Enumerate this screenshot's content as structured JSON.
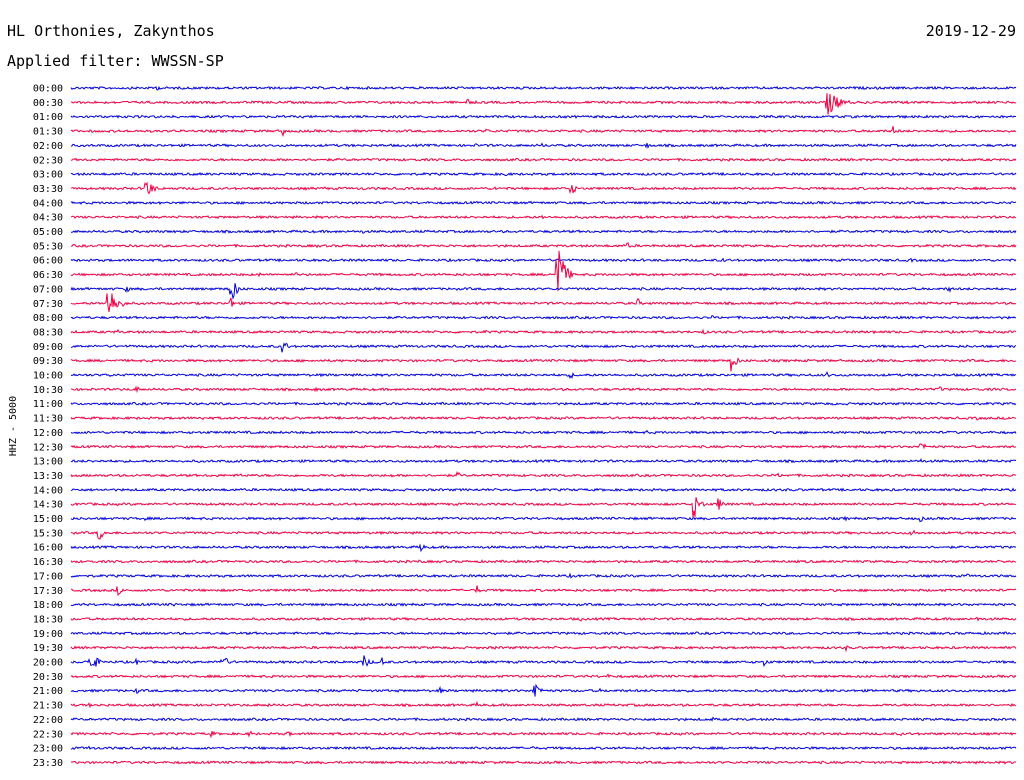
{
  "chart_data": {
    "type": "line",
    "title": "HL Orthonies, Zakynthos",
    "date": "2019-12-29",
    "subtitle": "Applied filter: WWSSN-SP",
    "ylabel": "HHZ - 5000",
    "xlabel": "",
    "grid": false,
    "colors": [
      "#0000dd",
      "#ee0044"
    ],
    "rows": [
      {
        "label": "00:00",
        "events": [
          {
            "x": 0.09,
            "a": 3,
            "d": 0.015
          },
          {
            "x": 0.4,
            "a": 1.5,
            "d": 0.008
          },
          {
            "x": 0.53,
            "a": 1.5,
            "d": 0.008
          }
        ]
      },
      {
        "label": "00:30",
        "events": [
          {
            "x": 0.34,
            "a": 2,
            "d": 0.006
          },
          {
            "x": 0.42,
            "a": 4,
            "d": 0.012
          },
          {
            "x": 0.8,
            "a": 14,
            "d": 0.035
          },
          {
            "x": 0.88,
            "a": 2,
            "d": 0.005
          }
        ]
      },
      {
        "label": "01:00",
        "events": []
      },
      {
        "label": "01:30",
        "events": [
          {
            "x": 0.225,
            "a": 6,
            "d": 0.004
          },
          {
            "x": 0.44,
            "a": 3,
            "d": 0.006
          },
          {
            "x": 0.87,
            "a": 5,
            "d": 0.015
          }
        ]
      },
      {
        "label": "02:00",
        "events": [
          {
            "x": 0.43,
            "a": 2,
            "d": 0.006
          },
          {
            "x": 0.5,
            "a": 2,
            "d": 0.012
          },
          {
            "x": 0.61,
            "a": 3,
            "d": 0.008
          }
        ]
      },
      {
        "label": "02:30",
        "events": []
      },
      {
        "label": "03:00",
        "events": [
          {
            "x": 0.46,
            "a": 3,
            "d": 0.005
          }
        ]
      },
      {
        "label": "03:30",
        "events": [
          {
            "x": 0.08,
            "a": 10,
            "d": 0.02
          },
          {
            "x": 0.27,
            "a": 2,
            "d": 0.008
          },
          {
            "x": 0.31,
            "a": 2,
            "d": 0.006
          },
          {
            "x": 0.45,
            "a": 2,
            "d": 0.006
          },
          {
            "x": 0.53,
            "a": 6,
            "d": 0.015
          },
          {
            "x": 0.87,
            "a": 1.5,
            "d": 0.005
          }
        ]
      },
      {
        "label": "04:00",
        "events": []
      },
      {
        "label": "04:30",
        "events": [
          {
            "x": 0.5,
            "a": 2,
            "d": 0.004
          }
        ]
      },
      {
        "label": "05:00",
        "events": [
          {
            "x": 0.19,
            "a": 2,
            "d": 0.004
          },
          {
            "x": 0.31,
            "a": 2,
            "d": 0.004
          }
        ]
      },
      {
        "label": "05:30",
        "events": [
          {
            "x": 0.26,
            "a": 2,
            "d": 0.004
          },
          {
            "x": 0.59,
            "a": 3,
            "d": 0.01
          }
        ]
      },
      {
        "label": "06:00",
        "events": [
          {
            "x": 0.69,
            "a": 3,
            "d": 0.008
          },
          {
            "x": 0.89,
            "a": 2,
            "d": 0.004
          }
        ]
      },
      {
        "label": "06:30",
        "events": [
          {
            "x": 0.2,
            "a": 2,
            "d": 0.006
          },
          {
            "x": 0.24,
            "a": 2,
            "d": 0.005
          },
          {
            "x": 0.515,
            "a": 40,
            "d": 0.018
          }
        ]
      },
      {
        "label": "07:00",
        "events": [
          {
            "x": 0.06,
            "a": 3,
            "d": 0.01
          },
          {
            "x": 0.17,
            "a": 16,
            "d": 0.014
          },
          {
            "x": 0.93,
            "a": 3,
            "d": 0.005
          }
        ]
      },
      {
        "label": "07:30",
        "events": [
          {
            "x": 0.04,
            "a": 18,
            "d": 0.025
          },
          {
            "x": 0.17,
            "a": 6,
            "d": 0.01
          },
          {
            "x": 0.6,
            "a": 5,
            "d": 0.008
          }
        ]
      },
      {
        "label": "08:00",
        "events": [
          {
            "x": 0.68,
            "a": 2,
            "d": 0.006
          }
        ]
      },
      {
        "label": "08:30",
        "events": [
          {
            "x": 0.05,
            "a": 2,
            "d": 0.004
          },
          {
            "x": 0.44,
            "a": 2,
            "d": 0.004
          },
          {
            "x": 0.67,
            "a": 3,
            "d": 0.006
          },
          {
            "x": 0.85,
            "a": 2,
            "d": 0.004
          }
        ]
      },
      {
        "label": "09:00",
        "events": [
          {
            "x": 0.225,
            "a": 7,
            "d": 0.012
          }
        ]
      },
      {
        "label": "09:30",
        "events": [
          {
            "x": 0.7,
            "a": 12,
            "d": 0.012
          }
        ]
      },
      {
        "label": "10:00",
        "events": [
          {
            "x": 0.04,
            "a": 3,
            "d": 0.008
          },
          {
            "x": 0.27,
            "a": 2,
            "d": 0.004
          },
          {
            "x": 0.53,
            "a": 3,
            "d": 0.008
          },
          {
            "x": 0.8,
            "a": 3,
            "d": 0.01
          }
        ]
      },
      {
        "label": "10:30",
        "events": [
          {
            "x": 0.07,
            "a": 3,
            "d": 0.01
          },
          {
            "x": 0.26,
            "a": 2,
            "d": 0.006
          },
          {
            "x": 0.92,
            "a": 3,
            "d": 0.01
          }
        ]
      },
      {
        "label": "11:00",
        "events": [
          {
            "x": 0.84,
            "a": 2,
            "d": 0.004
          }
        ]
      },
      {
        "label": "11:30",
        "events": [
          {
            "x": 0.14,
            "a": 2,
            "d": 0.004
          },
          {
            "x": 0.21,
            "a": 2,
            "d": 0.006
          },
          {
            "x": 0.96,
            "a": 2,
            "d": 0.006
          }
        ]
      },
      {
        "label": "12:00",
        "events": [
          {
            "x": 0.23,
            "a": 1.5,
            "d": 0.004
          },
          {
            "x": 0.61,
            "a": 2,
            "d": 0.006
          }
        ]
      },
      {
        "label": "12:30",
        "events": [
          {
            "x": 0.9,
            "a": 5,
            "d": 0.015
          }
        ]
      },
      {
        "label": "13:00",
        "events": [
          {
            "x": 0.23,
            "a": 1.5,
            "d": 0.004
          },
          {
            "x": 0.9,
            "a": 3,
            "d": 0.006
          }
        ]
      },
      {
        "label": "13:30",
        "events": [
          {
            "x": 0.18,
            "a": 2,
            "d": 0.006
          },
          {
            "x": 0.34,
            "a": 2,
            "d": 0.006
          },
          {
            "x": 0.41,
            "a": 3,
            "d": 0.015
          },
          {
            "x": 0.75,
            "a": 2,
            "d": 0.006
          }
        ]
      },
      {
        "label": "14:00",
        "events": []
      },
      {
        "label": "14:30",
        "events": [
          {
            "x": 0.34,
            "a": 2,
            "d": 0.004
          },
          {
            "x": 0.66,
            "a": 14,
            "d": 0.015
          },
          {
            "x": 0.685,
            "a": 7,
            "d": 0.015
          },
          {
            "x": 0.82,
            "a": 2,
            "d": 0.004
          },
          {
            "x": 0.87,
            "a": 2,
            "d": 0.004
          }
        ]
      },
      {
        "label": "15:00",
        "events": [
          {
            "x": 0.08,
            "a": 2,
            "d": 0.01
          },
          {
            "x": 0.61,
            "a": 2,
            "d": 0.006
          },
          {
            "x": 0.82,
            "a": 2,
            "d": 0.006
          },
          {
            "x": 0.9,
            "a": 3,
            "d": 0.008
          }
        ]
      },
      {
        "label": "15:30",
        "events": [
          {
            "x": 0.03,
            "a": 8,
            "d": 0.014
          },
          {
            "x": 0.25,
            "a": 2,
            "d": 0.006
          },
          {
            "x": 0.89,
            "a": 5,
            "d": 0.01
          }
        ]
      },
      {
        "label": "16:00",
        "events": [
          {
            "x": 0.31,
            "a": 2,
            "d": 0.004
          },
          {
            "x": 0.37,
            "a": 5,
            "d": 0.012
          }
        ]
      },
      {
        "label": "16:30",
        "events": [
          {
            "x": 0.37,
            "a": 2,
            "d": 0.004
          },
          {
            "x": 0.78,
            "a": 2,
            "d": 0.004
          }
        ]
      },
      {
        "label": "17:00",
        "events": [
          {
            "x": 0.53,
            "a": 2,
            "d": 0.004
          },
          {
            "x": 0.95,
            "a": 2,
            "d": 0.004
          }
        ]
      },
      {
        "label": "17:30",
        "events": [
          {
            "x": 0.05,
            "a": 5,
            "d": 0.012
          },
          {
            "x": 0.43,
            "a": 5,
            "d": 0.008
          }
        ]
      },
      {
        "label": "18:00",
        "events": [
          {
            "x": 0.11,
            "a": 3,
            "d": 0.004
          }
        ]
      },
      {
        "label": "18:30",
        "events": [
          {
            "x": 0.09,
            "a": 2,
            "d": 0.008
          },
          {
            "x": 0.54,
            "a": 2,
            "d": 0.004
          },
          {
            "x": 0.96,
            "a": 3,
            "d": 0.012
          }
        ]
      },
      {
        "label": "19:00",
        "events": [
          {
            "x": 0.45,
            "a": 2,
            "d": 0.004
          }
        ]
      },
      {
        "label": "19:30",
        "events": [
          {
            "x": 0.45,
            "a": 2,
            "d": 0.004
          },
          {
            "x": 0.82,
            "a": 3,
            "d": 0.01
          }
        ]
      },
      {
        "label": "20:00",
        "events": [
          {
            "x": 0.02,
            "a": 12,
            "d": 0.02
          },
          {
            "x": 0.07,
            "a": 3,
            "d": 0.012
          },
          {
            "x": 0.16,
            "a": 9,
            "d": 0.015
          },
          {
            "x": 0.31,
            "a": 7,
            "d": 0.018
          },
          {
            "x": 0.33,
            "a": 5,
            "d": 0.012
          },
          {
            "x": 0.735,
            "a": 4,
            "d": 0.012
          }
        ]
      },
      {
        "label": "20:30",
        "events": [
          {
            "x": 0.57,
            "a": 2,
            "d": 0.004
          }
        ]
      },
      {
        "label": "21:00",
        "events": [
          {
            "x": 0.07,
            "a": 3,
            "d": 0.01
          },
          {
            "x": 0.39,
            "a": 4,
            "d": 0.01
          },
          {
            "x": 0.49,
            "a": 14,
            "d": 0.012
          },
          {
            "x": 0.56,
            "a": 2,
            "d": 0.004
          }
        ]
      },
      {
        "label": "21:30",
        "events": [
          {
            "x": 0.02,
            "a": 2,
            "d": 0.006
          },
          {
            "x": 0.21,
            "a": 2,
            "d": 0.004
          },
          {
            "x": 0.43,
            "a": 3,
            "d": 0.006
          },
          {
            "x": 0.6,
            "a": 2,
            "d": 0.004
          }
        ]
      },
      {
        "label": "22:00",
        "events": [
          {
            "x": 0.68,
            "a": 2,
            "d": 0.006
          }
        ]
      },
      {
        "label": "22:30",
        "events": [
          {
            "x": 0.15,
            "a": 3,
            "d": 0.008
          },
          {
            "x": 0.19,
            "a": 3,
            "d": 0.01
          },
          {
            "x": 0.23,
            "a": 3,
            "d": 0.01
          },
          {
            "x": 0.88,
            "a": 2,
            "d": 0.004
          }
        ]
      },
      {
        "label": "23:00",
        "events": [
          {
            "x": 0.02,
            "a": 2,
            "d": 0.01
          },
          {
            "x": 0.49,
            "a": 2,
            "d": 0.004
          }
        ]
      },
      {
        "label": "23:30",
        "events": []
      }
    ]
  }
}
